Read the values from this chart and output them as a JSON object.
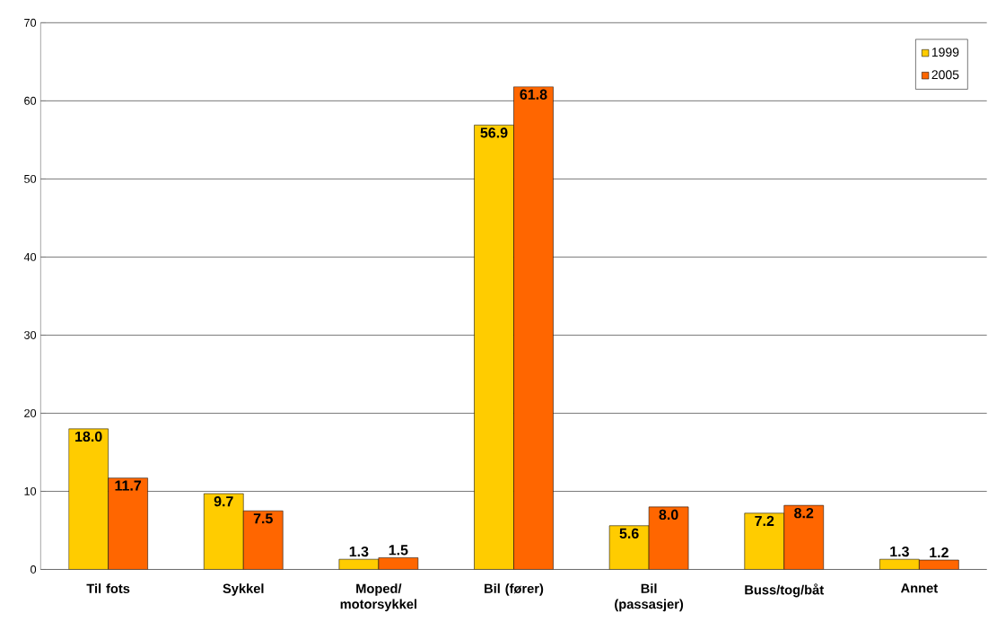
{
  "chart_data": {
    "type": "bar",
    "categories": [
      "Til fots",
      "Sykkel",
      "Moped/ motorsykkel",
      "Bil (fører)",
      "Bil (passasjer)",
      "Buss/tog/båt",
      "Annet"
    ],
    "series": [
      {
        "name": "1999",
        "color": "#ffcc00",
        "values": [
          18.0,
          9.7,
          1.3,
          56.9,
          5.6,
          7.2,
          1.3
        ],
        "value_labels": [
          "18.0",
          "9.7",
          "1.3",
          "56.9",
          "5.6",
          "7.2",
          "1.3"
        ]
      },
      {
        "name": "2005",
        "color": "#ff6600",
        "values": [
          11.7,
          7.5,
          1.5,
          61.8,
          8.0,
          8.2,
          1.2
        ],
        "value_labels": [
          "11.7",
          "7.5",
          "1.5",
          "61.8",
          "8.0",
          "8.2",
          "1.2"
        ]
      }
    ],
    "ylim": [
      0,
      70
    ],
    "yticks": [
      0,
      10,
      20,
      30,
      40,
      50,
      60,
      70
    ],
    "grid": "y",
    "legend": "top right"
  }
}
